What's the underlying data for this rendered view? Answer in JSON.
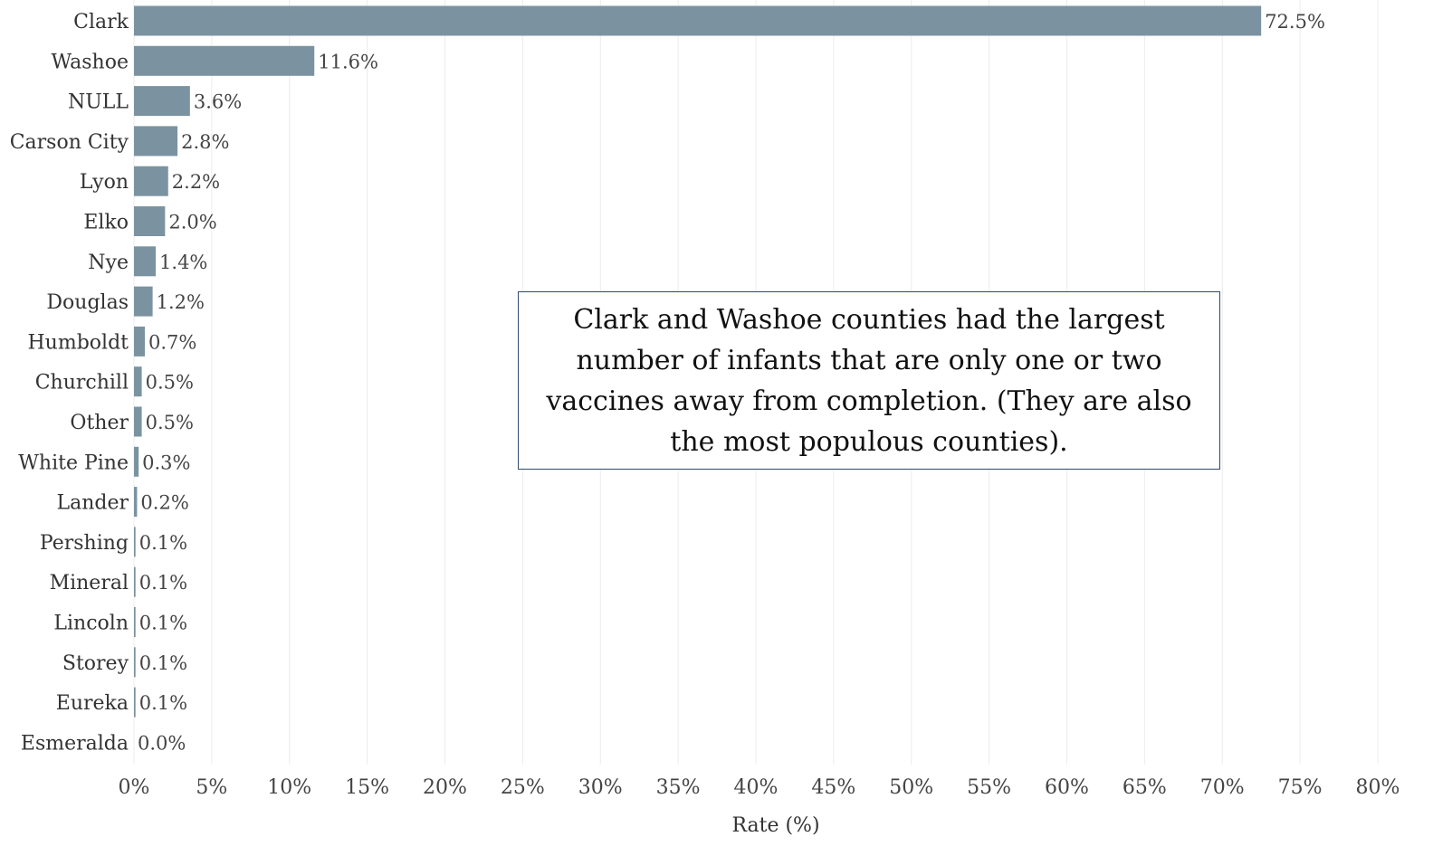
{
  "chart_data": {
    "type": "bar",
    "orientation": "horizontal",
    "categories": [
      "Clark",
      "Washoe",
      "NULL",
      "Carson City",
      "Lyon",
      "Elko",
      "Nye",
      "Douglas",
      "Humboldt",
      "Churchill",
      "Other",
      "White Pine",
      "Lander",
      "Pershing",
      "Mineral",
      "Lincoln",
      "Storey",
      "Eureka",
      "Esmeralda"
    ],
    "values": [
      72.5,
      11.6,
      3.6,
      2.8,
      2.2,
      2.0,
      1.4,
      1.2,
      0.7,
      0.5,
      0.5,
      0.3,
      0.2,
      0.1,
      0.1,
      0.1,
      0.1,
      0.1,
      0.0
    ],
    "value_labels": [
      "72.5%",
      "11.6%",
      "3.6%",
      "2.8%",
      "2.2%",
      "2.0%",
      "1.4%",
      "1.2%",
      "0.7%",
      "0.5%",
      "0.5%",
      "0.3%",
      "0.2%",
      "0.1%",
      "0.1%",
      "0.1%",
      "0.1%",
      "0.1%",
      "0.0%"
    ],
    "xlabel": "Rate (%)",
    "xlim": [
      0,
      80
    ],
    "x_ticks": [
      0,
      5,
      10,
      15,
      20,
      25,
      30,
      35,
      40,
      45,
      50,
      55,
      60,
      65,
      70,
      75,
      80
    ],
    "x_tick_labels": [
      "0%",
      "5%",
      "10%",
      "15%",
      "20%",
      "25%",
      "30%",
      "35%",
      "40%",
      "45%",
      "50%",
      "55%",
      "60%",
      "65%",
      "70%",
      "75%",
      "80%"
    ],
    "grid": "vertical",
    "bar_color": "#7b93a1",
    "annotation": "Clark and Washoe counties had the largest number of infants that are only one or two vaccines away from completion. (They are also the most populous counties)."
  }
}
